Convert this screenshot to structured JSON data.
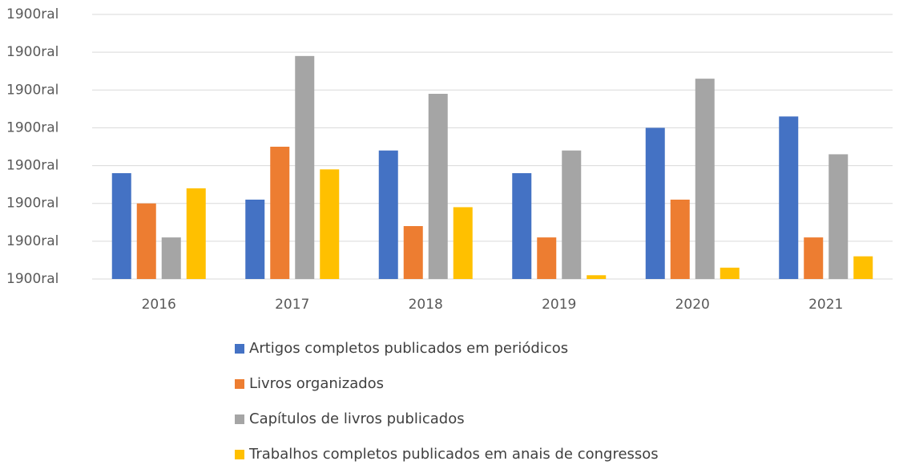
{
  "chart_data": {
    "type": "bar",
    "categories": [
      "2016",
      "2017",
      "2018",
      "2019",
      "2020",
      "2021"
    ],
    "series": [
      {
        "name": "Artigos completos publicados em periódicos",
        "color": "#4472c4",
        "values": [
          2.8,
          2.1,
          3.4,
          2.8,
          4.0,
          4.3
        ]
      },
      {
        "name": "Livros organizados",
        "color": "#ed7d31",
        "values": [
          2.0,
          3.5,
          1.4,
          1.1,
          2.1,
          1.1
        ]
      },
      {
        "name": "Capítulos de livros publicados",
        "color": "#a5a5a5",
        "values": [
          1.1,
          5.9,
          4.9,
          3.4,
          5.3,
          3.3
        ]
      },
      {
        "name": "Trabalhos completos publicados em anais de congressos",
        "color": "#ffc000",
        "values": [
          2.4,
          2.9,
          1.9,
          0.1,
          0.3,
          0.6
        ]
      }
    ],
    "ylim": [
      0,
      7
    ],
    "yticks": [
      {
        "value": 0,
        "label": "1900ral"
      },
      {
        "value": 1,
        "label": "1900ral"
      },
      {
        "value": 2,
        "label": "1900ral"
      },
      {
        "value": 3,
        "label": "1900ral"
      },
      {
        "value": 4,
        "label": "1900ral"
      },
      {
        "value": 5,
        "label": "1900ral"
      },
      {
        "value": 6,
        "label": "1900ral"
      },
      {
        "value": 7,
        "label": "1900ral"
      }
    ],
    "grid": true,
    "legend": "bottom"
  }
}
